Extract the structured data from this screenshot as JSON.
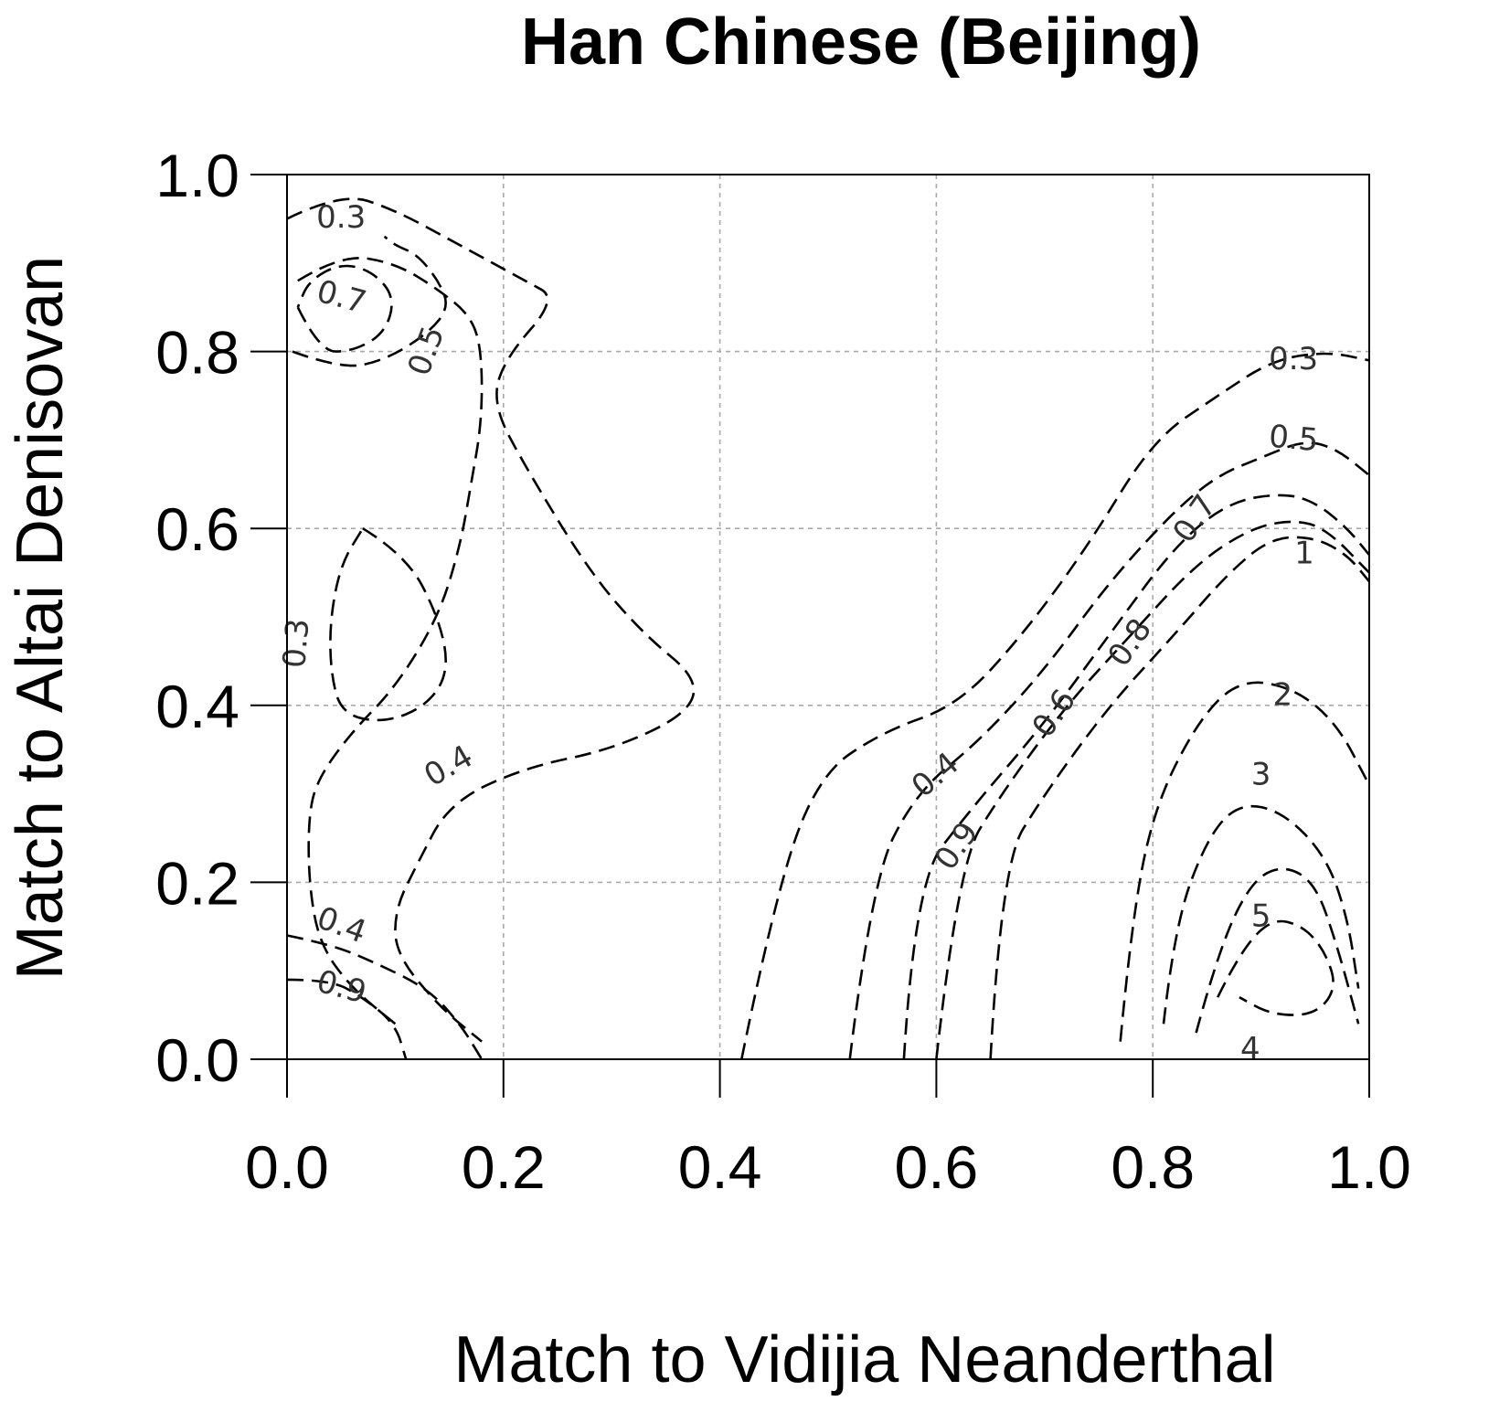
{
  "chart_data": {
    "type": "contour",
    "title": "Han Chinese (Beijing)",
    "xlabel": "Match to Vidijia Neanderthal",
    "ylabel": "Match to Altai Denisovan",
    "xlim": [
      0,
      1
    ],
    "ylim": [
      0,
      1
    ],
    "xticks": [
      "0.0",
      "0.2",
      "0.4",
      "0.6",
      "0.8",
      "1.0"
    ],
    "yticks": [
      "0.0",
      "0.2",
      "0.4",
      "0.6",
      "0.8",
      "1.0"
    ],
    "grid": true,
    "contours": [
      {
        "level": "0.3",
        "x": [
          0.0,
          0.05,
          0.1,
          0.16,
          0.22,
          0.25,
          0.2,
          0.19,
          0.22,
          0.28,
          0.33,
          0.38,
          0.37,
          0.3,
          0.22,
          0.15,
          0.12,
          0.1,
          0.1,
          0.14,
          0.18
        ],
        "y": [
          0.95,
          0.98,
          0.96,
          0.92,
          0.88,
          0.86,
          0.79,
          0.74,
          0.67,
          0.55,
          0.48,
          0.43,
          0.39,
          0.35,
          0.33,
          0.29,
          0.22,
          0.17,
          0.12,
          0.06,
          0.02
        ]
      },
      {
        "level": "0.4",
        "x": [
          0.01,
          0.05,
          0.1,
          0.14,
          0.17,
          0.18,
          0.18,
          0.17,
          0.16,
          0.14,
          0.1,
          0.06,
          0.03,
          0.02,
          0.02,
          0.03,
          0.06,
          0.1
        ],
        "y": [
          0.88,
          0.91,
          0.9,
          0.87,
          0.84,
          0.8,
          0.72,
          0.65,
          0.58,
          0.5,
          0.42,
          0.37,
          0.32,
          0.28,
          0.2,
          0.13,
          0.08,
          0.04
        ]
      },
      {
        "level": "0.5",
        "x": [
          0.005,
          0.05,
          0.09,
          0.13,
          0.15,
          0.14,
          0.12,
          0.1,
          0.09
        ],
        "y": [
          0.8,
          0.78,
          0.79,
          0.82,
          0.85,
          0.88,
          0.91,
          0.92,
          0.93
        ]
      },
      {
        "level": "0.3 (inner)",
        "x": [
          0.07,
          0.11,
          0.14,
          0.15,
          0.13,
          0.09,
          0.05,
          0.04,
          0.04,
          0.05,
          0.07
        ],
        "y": [
          0.6,
          0.57,
          0.5,
          0.44,
          0.4,
          0.38,
          0.39,
          0.44,
          0.5,
          0.56,
          0.6
        ]
      },
      {
        "level": "0.7",
        "x": [
          0.01,
          0.03,
          0.06,
          0.09,
          0.1,
          0.08,
          0.05,
          0.02,
          0.01
        ],
        "y": [
          0.85,
          0.8,
          0.8,
          0.82,
          0.86,
          0.89,
          0.9,
          0.88,
          0.85
        ]
      },
      {
        "level": "0.4 (lower-left)",
        "x": [
          0.0,
          0.04,
          0.08,
          0.13,
          0.16,
          0.18
        ],
        "y": [
          0.14,
          0.13,
          0.11,
          0.08,
          0.04,
          0.0
        ]
      },
      {
        "level": "0.9",
        "x": [
          0.0,
          0.04,
          0.07,
          0.1,
          0.11
        ],
        "y": [
          0.09,
          0.09,
          0.07,
          0.04,
          0.0
        ]
      },
      {
        "level": "0.3",
        "x": [
          0.42,
          0.45,
          0.49,
          0.55,
          0.62,
          0.68,
          0.74,
          0.8,
          0.86,
          0.91,
          0.96,
          1.0
        ],
        "y": [
          0.0,
          0.18,
          0.32,
          0.37,
          0.4,
          0.48,
          0.58,
          0.7,
          0.75,
          0.79,
          0.8,
          0.79
        ]
      },
      {
        "level": "0.5",
        "x": [
          0.52,
          0.54,
          0.58,
          0.64,
          0.7,
          0.76,
          0.82,
          0.86,
          0.9,
          0.94,
          0.97,
          1.0
        ],
        "y": [
          0.0,
          0.2,
          0.3,
          0.36,
          0.44,
          0.54,
          0.62,
          0.66,
          0.68,
          0.7,
          0.69,
          0.66
        ]
      },
      {
        "level": "0.7",
        "x": [
          0.57,
          0.58,
          0.63,
          0.7,
          0.76,
          0.82,
          0.87,
          0.92,
          0.95,
          0.98,
          1.0
        ],
        "y": [
          0.0,
          0.2,
          0.28,
          0.38,
          0.48,
          0.58,
          0.63,
          0.64,
          0.63,
          0.6,
          0.57
        ]
      },
      {
        "level": "0.8",
        "x": [
          0.6,
          0.62,
          0.66,
          0.72,
          0.78,
          0.84,
          0.89,
          0.93,
          0.96,
          1.0
        ],
        "y": [
          0.0,
          0.22,
          0.3,
          0.4,
          0.48,
          0.56,
          0.6,
          0.61,
          0.6,
          0.55
        ]
      },
      {
        "level": "1",
        "x": [
          0.65,
          0.66,
          0.7,
          0.76,
          0.82,
          0.87,
          0.91,
          0.95,
          0.98,
          1.0
        ],
        "y": [
          0.0,
          0.22,
          0.3,
          0.4,
          0.48,
          0.55,
          0.59,
          0.59,
          0.57,
          0.54
        ]
      },
      {
        "level": "2",
        "x": [
          0.77,
          0.78,
          0.8,
          0.84,
          0.88,
          0.93,
          0.97,
          1.0
        ],
        "y": [
          0.02,
          0.15,
          0.28,
          0.38,
          0.43,
          0.42,
          0.38,
          0.31
        ]
      },
      {
        "level": "3",
        "x": [
          0.81,
          0.82,
          0.85,
          0.88,
          0.92,
          0.96,
          0.98,
          0.99
        ],
        "y": [
          0.04,
          0.15,
          0.25,
          0.29,
          0.28,
          0.23,
          0.16,
          0.08
        ]
      },
      {
        "level": "4",
        "x": [
          0.84,
          0.86,
          0.89,
          0.92,
          0.95,
          0.97,
          0.99
        ],
        "y": [
          0.03,
          0.12,
          0.2,
          0.22,
          0.2,
          0.13,
          0.04
        ]
      },
      {
        "level": "5",
        "x": [
          0.86,
          0.88,
          0.91,
          0.94,
          0.96,
          0.97,
          0.95,
          0.91,
          0.88
        ],
        "y": [
          0.07,
          0.12,
          0.16,
          0.15,
          0.12,
          0.08,
          0.05,
          0.05,
          0.07
        ]
      }
    ],
    "contour_labels": [
      "0.3",
      "0.7",
      "0.5",
      "0.3",
      "0.4",
      "0.4",
      "0.9",
      "0.3",
      "0.5",
      "0.7",
      "1",
      "0.8",
      "0.6",
      "0.4",
      "0.9",
      "2",
      "3",
      "5",
      "4"
    ]
  }
}
